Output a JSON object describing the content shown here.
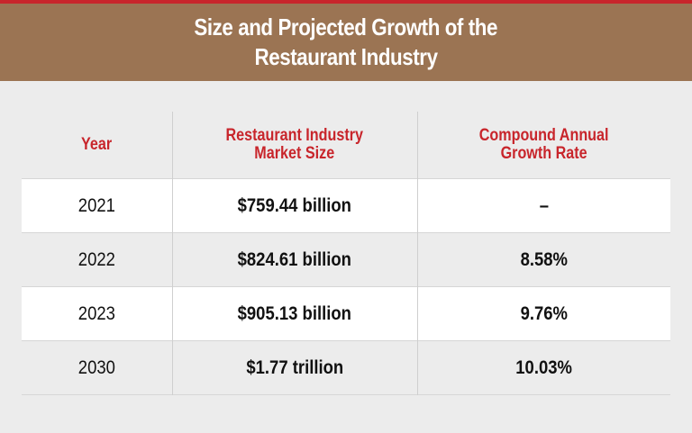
{
  "chart_data": {
    "type": "table",
    "title": "Size and Projected Growth of the Restaurant Industry",
    "title_lines": [
      "Size and Projected Growth of the",
      "Restaurant Industry"
    ],
    "columns": [
      {
        "label_lines": [
          "Year"
        ]
      },
      {
        "label_lines": [
          "Restaurant Industry",
          "Market Size"
        ]
      },
      {
        "label_lines": [
          "Compound Annual",
          "Growth Rate"
        ]
      }
    ],
    "rows": [
      {
        "year": "2021",
        "market_size": "$759.44 billion",
        "growth_rate": "–"
      },
      {
        "year": "2022",
        "market_size": "$824.61 billion",
        "growth_rate": "8.58%"
      },
      {
        "year": "2023",
        "market_size": "$905.13 billion",
        "growth_rate": "9.76%"
      },
      {
        "year": "2030",
        "market_size": "$1.77 trillion",
        "growth_rate": "10.03%"
      }
    ]
  },
  "colors": {
    "title_band": "#9b7453",
    "accent_red": "#c8252b",
    "page_background": "#ececec",
    "row_white": "#ffffff"
  }
}
